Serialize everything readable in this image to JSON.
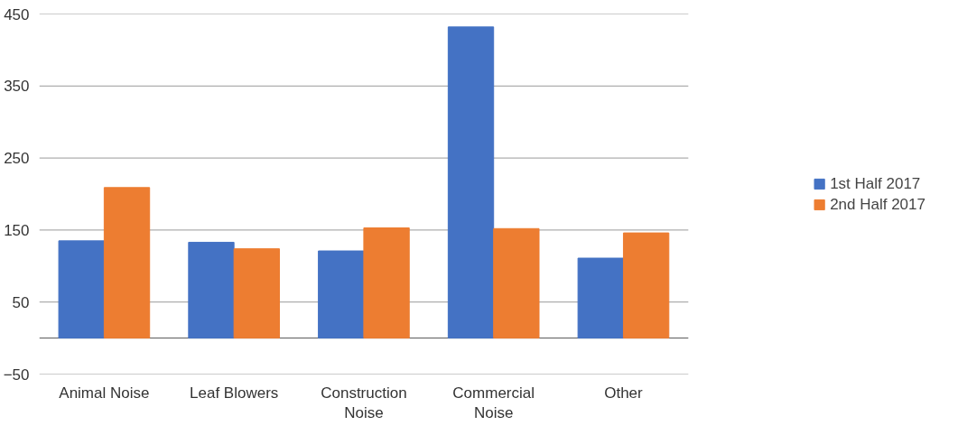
{
  "chart_data": {
    "type": "bar",
    "categories": [
      "Animal Noise",
      "Leaf Blowers",
      "Construction Noise",
      "Commercial Noise",
      "Other"
    ],
    "series": [
      {
        "name": "1st Half 2017",
        "color": "#4472c4",
        "values": [
          135,
          133,
          121,
          432,
          111
        ]
      },
      {
        "name": "2nd Half 2017",
        "color": "#ed7d31",
        "values": [
          209,
          124,
          153,
          152,
          146
        ]
      }
    ],
    "ylim": [
      -50,
      450
    ],
    "yticks": [
      -50,
      50,
      150,
      250,
      350,
      450
    ],
    "grid": "y",
    "legend": "right"
  }
}
